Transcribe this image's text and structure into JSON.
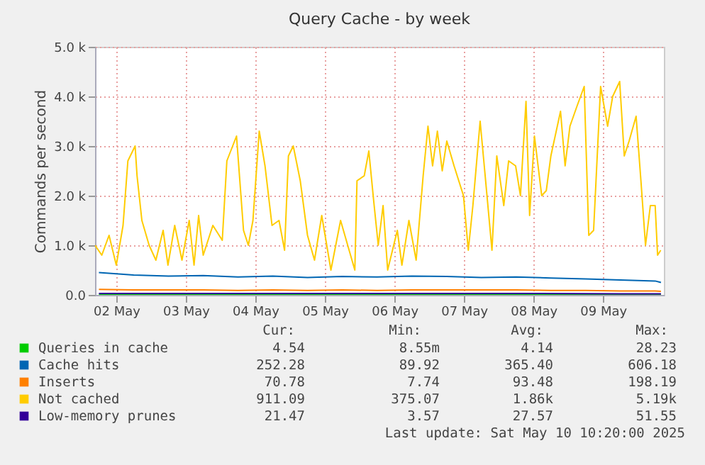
{
  "chart_data": {
    "type": "line",
    "title": "Query Cache - by week",
    "ylabel": "Commands per second",
    "xlim": [
      "2025-05-01T16:40",
      "2025-05-09T21:00"
    ],
    "xticks": [
      {
        "value": "2025-05-02",
        "label": "02 May"
      },
      {
        "value": "2025-05-03",
        "label": "03 May"
      },
      {
        "value": "2025-05-04",
        "label": "04 May"
      },
      {
        "value": "2025-05-05",
        "label": "05 May"
      },
      {
        "value": "2025-05-06",
        "label": "06 May"
      },
      {
        "value": "2025-05-07",
        "label": "07 May"
      },
      {
        "value": "2025-05-08",
        "label": "08 May"
      },
      {
        "value": "2025-05-09",
        "label": "09 May"
      }
    ],
    "ylim": [
      0,
      5000
    ],
    "yticks": [
      {
        "value": 0,
        "label": "0.0"
      },
      {
        "value": 1000,
        "label": "1.0 k"
      },
      {
        "value": 2000,
        "label": "2.0 k"
      },
      {
        "value": 3000,
        "label": "3.0 k"
      },
      {
        "value": 4000,
        "label": "4.0 k"
      },
      {
        "value": 5000,
        "label": "5.0 k"
      }
    ],
    "grid": true,
    "legend": "bottom",
    "line_style": "solid",
    "marker": "none",
    "series": [
      {
        "name": "Queries in cache",
        "color": "#00cc00",
        "x": [
          "2025-05-01T18:00",
          "2025-05-03T06:00",
          "2025-05-04T18:00",
          "2025-05-06T06:00",
          "2025-05-07T18:00",
          "2025-05-09T06:00",
          "2025-05-09T20:00"
        ],
        "values": [
          5,
          4,
          5,
          4,
          4,
          5,
          5
        ]
      },
      {
        "name": "Cache hits",
        "color": "#0066b3",
        "x": [
          "2025-05-01T18:00",
          "2025-05-02T06:00",
          "2025-05-02T18:00",
          "2025-05-03T06:00",
          "2025-05-03T18:00",
          "2025-05-04T06:00",
          "2025-05-04T18:00",
          "2025-05-05T06:00",
          "2025-05-05T18:00",
          "2025-05-06T06:00",
          "2025-05-06T18:00",
          "2025-05-07T06:00",
          "2025-05-07T18:00",
          "2025-05-08T06:00",
          "2025-05-08T18:00",
          "2025-05-09T06:00",
          "2025-05-09T18:00",
          "2025-05-09T20:00"
        ],
        "values": [
          450,
          400,
          380,
          390,
          360,
          380,
          350,
          370,
          360,
          380,
          370,
          350,
          360,
          340,
          320,
          300,
          280,
          250
        ]
      },
      {
        "name": "Inserts",
        "color": "#ff8000",
        "x": [
          "2025-05-01T18:00",
          "2025-05-02T06:00",
          "2025-05-02T18:00",
          "2025-05-03T06:00",
          "2025-05-03T18:00",
          "2025-05-04T06:00",
          "2025-05-04T18:00",
          "2025-05-05T06:00",
          "2025-05-05T18:00",
          "2025-05-06T06:00",
          "2025-05-06T18:00",
          "2025-05-07T06:00",
          "2025-05-07T18:00",
          "2025-05-08T06:00",
          "2025-05-08T18:00",
          "2025-05-09T06:00",
          "2025-05-09T18:00",
          "2025-05-09T20:00"
        ],
        "values": [
          110,
          100,
          100,
          100,
          90,
          100,
          90,
          100,
          90,
          100,
          100,
          100,
          100,
          90,
          90,
          80,
          80,
          70
        ]
      },
      {
        "name": "Not cached",
        "color": "#ffcc00",
        "x": [
          "2025-05-01T16:40",
          "2025-05-01T19:00",
          "2025-05-01T21:30",
          "2025-05-02T00:00",
          "2025-05-02T02:20",
          "2025-05-02T04:00",
          "2025-05-02T06:30",
          "2025-05-02T07:10",
          "2025-05-02T08:50",
          "2025-05-02T11:20",
          "2025-05-02T13:40",
          "2025-05-02T16:10",
          "2025-05-02T17:50",
          "2025-05-02T20:10",
          "2025-05-02T22:40",
          "2025-05-03T01:10",
          "2025-05-03T02:50",
          "2025-05-03T04:25",
          "2025-05-03T06:00",
          "2025-05-03T09:20",
          "2025-05-03T12:35",
          "2025-05-03T14:10",
          "2025-05-03T17:30",
          "2025-05-03T19:55",
          "2025-05-03T21:35",
          "2025-05-03T23:10",
          "2025-05-04T01:20",
          "2025-05-04T03:20",
          "2025-05-04T05:45",
          "2025-05-04T08:10",
          "2025-05-04T10:05",
          "2025-05-04T11:25",
          "2025-05-04T13:05",
          "2025-05-04T15:30",
          "2025-05-04T18:00",
          "2025-05-04T20:25",
          "2025-05-04T22:55",
          "2025-05-05T02:05",
          "2025-05-05T05:25",
          "2025-05-05T10:20",
          "2025-05-05T11:05",
          "2025-05-05T13:35",
          "2025-05-05T15:10",
          "2025-05-05T16:50",
          "2025-05-05T18:25",
          "2025-05-05T20:05",
          "2025-05-05T21:40",
          "2025-05-06T01:00",
          "2025-05-06T02:35",
          "2025-05-06T05:00",
          "2025-05-06T07:30",
          "2025-05-06T09:55",
          "2025-05-06T11:35",
          "2025-05-06T13:10",
          "2025-05-06T14:50",
          "2025-05-06T16:30",
          "2025-05-06T18:05",
          "2025-05-06T20:35",
          "2025-05-06T23:50",
          "2025-05-07T01:30",
          "2025-05-07T03:05",
          "2025-05-07T05:35",
          "2025-05-07T07:10",
          "2025-05-07T09:40",
          "2025-05-07T11:20",
          "2025-05-07T13:45",
          "2025-05-07T15:25",
          "2025-05-07T17:50",
          "2025-05-07T19:30",
          "2025-05-07T21:25",
          "2025-05-07T22:40",
          "2025-05-08T00:20",
          "2025-05-08T02:50",
          "2025-05-08T04:25",
          "2025-05-08T06:00",
          "2025-05-08T09:20",
          "2025-05-08T10:55",
          "2025-05-08T12:35",
          "2025-05-08T15:00",
          "2025-05-08T17:30",
          "2025-05-08T19:05",
          "2025-05-08T20:45",
          "2025-05-08T23:10",
          "2025-05-09T01:35",
          "2025-05-09T03:20",
          "2025-05-09T05:45",
          "2025-05-09T07:20",
          "2025-05-09T09:00",
          "2025-05-09T11:25",
          "2025-05-09T13:05",
          "2025-05-09T14:40",
          "2025-05-09T16:20",
          "2025-05-09T18:00",
          "2025-05-09T18:50",
          "2025-05-09T19:55"
        ],
        "values": [
          1000,
          800,
          1200,
          600,
          1400,
          2700,
          3000,
          2400,
          1500,
          1000,
          700,
          1300,
          600,
          1400,
          700,
          1500,
          600,
          1600,
          800,
          1400,
          1100,
          2700,
          3200,
          1300,
          1000,
          1500,
          3300,
          2600,
          1400,
          1500,
          900,
          2800,
          3000,
          2300,
          1200,
          700,
          1600,
          500,
          1500,
          500,
          2300,
          2400,
          2900,
          1900,
          1000,
          1800,
          500,
          1300,
          600,
          1500,
          700,
          2400,
          3400,
          2600,
          3300,
          2500,
          3100,
          2600,
          2000,
          900,
          1800,
          3500,
          2500,
          900,
          2800,
          1800,
          2700,
          2600,
          2000,
          3900,
          1600,
          3200,
          2000,
          2100,
          2800,
          3700,
          2600,
          3400,
          3800,
          4200,
          1200,
          1300,
          4200,
          3400,
          4000,
          4300,
          2800,
          3100,
          3600,
          2300,
          1000,
          1800,
          1800,
          800,
          900
        ]
      },
      {
        "name": "Low-memory prunes",
        "color": "#330099",
        "x": [
          "2025-05-01T18:00",
          "2025-05-03T06:00",
          "2025-05-04T18:00",
          "2025-05-06T06:00",
          "2025-05-07T18:00",
          "2025-05-09T06:00",
          "2025-05-09T20:00"
        ],
        "values": [
          30,
          30,
          30,
          30,
          30,
          20,
          20
        ]
      }
    ],
    "annotations": [
      "Cur:",
      "Min:",
      "Avg:",
      "Max:",
      "4.54",
      "8.55m",
      "4.14",
      "28.23",
      "252.28",
      "89.92",
      "365.40",
      "606.18",
      "70.78",
      "7.74",
      "93.48",
      "198.19",
      "911.09",
      "375.07",
      "1.86k",
      "5.19k",
      "21.47",
      "3.57",
      "27.57",
      "51.55",
      "Last update:  Sat May 10 10:20:00 2025"
    ]
  }
}
